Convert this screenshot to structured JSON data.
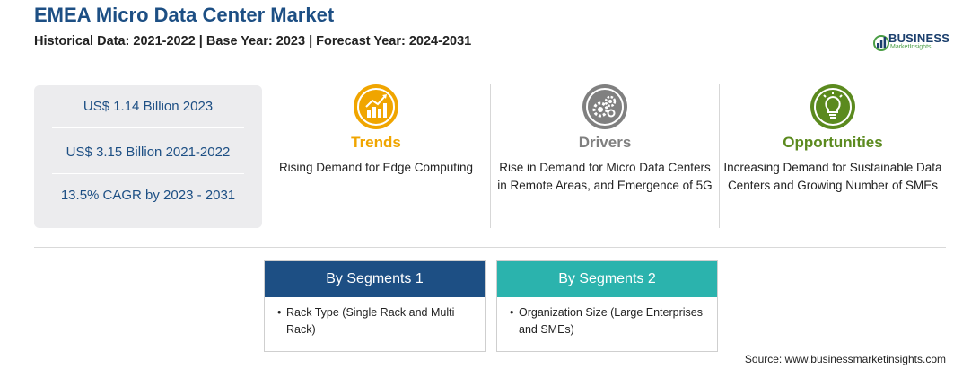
{
  "header": {
    "title": "EMEA Micro Data Center Market",
    "subtitle": "Historical Data: 2021-2022 | Base Year: 2023 | Forecast Year: 2024-2031"
  },
  "logo": {
    "brand": "BUSINESS",
    "sub": "MarketInsights"
  },
  "stats": [
    "US$ 1.14 Billion 2023",
    "US$ 3.15 Billion 2021-2022",
    "13.5% CAGR by 2023 - 2031"
  ],
  "columns": [
    {
      "label": "Trends",
      "icon": "trend-chart-icon",
      "color": "#f0a500",
      "text": "Rising Demand for Edge Computing"
    },
    {
      "label": "Drivers",
      "icon": "gears-icon",
      "color": "#808080",
      "text": "Rise in Demand for Micro Data Centers in Remote Areas, and Emergence of 5G"
    },
    {
      "label": "Opportunities",
      "icon": "lightbulb-icon",
      "color": "#5b8a1e",
      "text": "Increasing Demand for Sustainable Data Centers and Growing Number of SMEs"
    }
  ],
  "segments": [
    {
      "title": "By Segments 1",
      "color": "#1d4f84",
      "items": [
        "Rack Type (Single Rack and Multi Rack)"
      ]
    },
    {
      "title": "By Segments 2",
      "color": "#2bb3ad",
      "items": [
        "Organization Size (Large Enterprises and SMEs)"
      ]
    }
  ],
  "bullet": "•",
  "source": "Source: www.businessmarketinsights.com"
}
